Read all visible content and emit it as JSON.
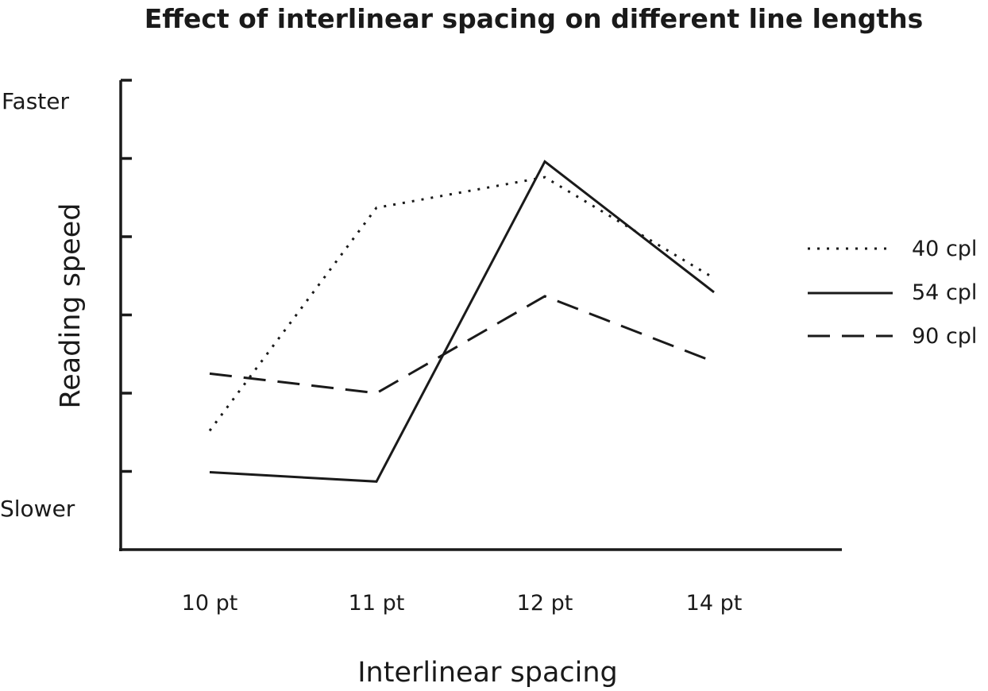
{
  "chart_data": {
    "type": "line",
    "title": "Effect of interlinear spacing on different line lengths",
    "xlabel": "Interlinear spacing",
    "ylabel": "Reading speed",
    "y_top_label": "Faster",
    "y_bottom_label": "Slower",
    "categories": [
      "10 pt",
      "11 pt",
      "12 pt",
      "14 pt"
    ],
    "ylim": [
      0,
      6
    ],
    "y_ticks": [
      1,
      2,
      3,
      4,
      5,
      6
    ],
    "grid": false,
    "legend_position": "right",
    "series": [
      {
        "name": "40 cpl",
        "style": "dotted",
        "values": [
          1.52,
          4.37,
          4.76,
          3.47
        ]
      },
      {
        "name": "54 cpl",
        "style": "solid",
        "values": [
          0.99,
          0.87,
          4.96,
          3.29
        ]
      },
      {
        "name": "90 cpl",
        "style": "dashed",
        "values": [
          2.25,
          2.0,
          3.24,
          2.4
        ]
      }
    ],
    "color": "#1a1a1a"
  }
}
